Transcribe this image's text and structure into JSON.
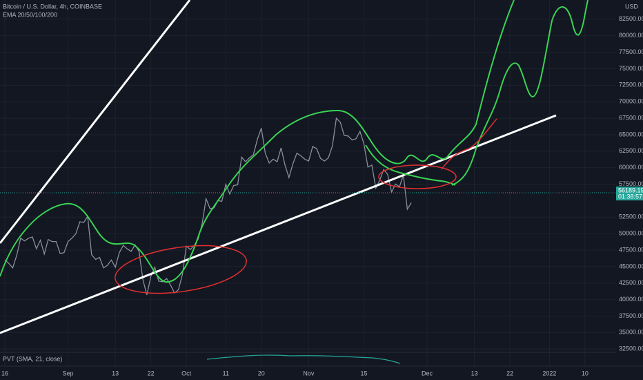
{
  "chart_data": {
    "type": "line",
    "title": "Bitcoin / U.S. Dollar, 4h, COINBASE",
    "subtitle": "EMA 20/50/100/200",
    "currency": "USD",
    "indicator": "PVT (SMA, 21, close)",
    "countdown": "01:38:57",
    "last_price": 56189.19,
    "color": "#8a8f9c",
    "price_label_color": "#26a69a",
    "grid": true,
    "categories": [
      "16",
      null,
      null,
      null,
      null,
      null,
      null,
      null,
      null,
      null,
      null,
      null,
      null,
      null,
      null,
      null,
      "Sep",
      null,
      null,
      null,
      null,
      null,
      null,
      null,
      null,
      null,
      null,
      null,
      "13",
      null,
      null,
      null,
      null,
      null,
      null,
      null,
      null,
      "22",
      null,
      null,
      null,
      null,
      null,
      null,
      null,
      null,
      "Oct",
      null,
      null,
      null,
      null,
      null,
      null,
      null,
      null,
      null,
      "11",
      null,
      null,
      null,
      null,
      null,
      null,
      null,
      null,
      "20",
      null,
      null,
      null,
      null,
      null,
      null,
      null,
      null,
      null,
      null,
      null,
      "Nov",
      null,
      null,
      null,
      null,
      null,
      null,
      null,
      null,
      null,
      null,
      null,
      null,
      null,
      "15",
      null,
      null,
      null,
      null,
      null,
      null,
      null,
      null,
      null,
      null,
      null,
      null,
      null,
      null,
      null,
      "Dec",
      null,
      null,
      null,
      null,
      null,
      null,
      null,
      null,
      null,
      null,
      null,
      "13",
      null,
      null,
      null,
      null,
      null,
      null,
      null,
      null,
      "22",
      null,
      null,
      null,
      null,
      null,
      null,
      null,
      null,
      null,
      "2022",
      null,
      null,
      null,
      null,
      null,
      null,
      null,
      null,
      "10",
      null,
      null,
      null,
      null,
      null,
      null,
      null
    ],
    "values": [
      46000,
      45500,
      44800,
      46700,
      49300,
      48900,
      49300,
      49500,
      47700,
      49000,
      46900,
      49100,
      48800,
      48800,
      47000,
      47100,
      48800,
      49300,
      50000,
      51800,
      51700,
      52600,
      46800,
      46100,
      46400,
      44800,
      45200,
      46000,
      44900,
      47100,
      48200,
      47700,
      47300,
      48300,
      47300,
      43000,
      40700,
      43500,
      44900,
      42800,
      42700,
      43200,
      42200,
      41000,
      41500,
      43800,
      48100,
      47600,
      48200,
      49200,
      51500,
      55300,
      53800,
      53900,
      55000,
      54900,
      57500,
      56000,
      57300,
      57400,
      61600,
      60900,
      61500,
      62000,
      64300,
      66000,
      62200,
      60700,
      61300,
      60900,
      63000,
      60400,
      58500,
      60600,
      62200,
      61800,
      61300,
      61000,
      63200,
      62900,
      61400,
      61000,
      61500,
      63300,
      67500,
      66900,
      64900,
      64800,
      64200,
      64400,
      65500,
      63600,
      60100,
      60400,
      56900,
      58100,
      59700,
      59000,
      56300,
      57500,
      57100,
      58900,
      53700,
      54700,
      null,
      null,
      null,
      null,
      null,
      null,
      null,
      null,
      null,
      null,
      null,
      null,
      null,
      null,
      null,
      null,
      null,
      null,
      null,
      null,
      null,
      null,
      null,
      null,
      null,
      null,
      null,
      null,
      null,
      null,
      null,
      null,
      null,
      null,
      null,
      null,
      null,
      null,
      null,
      null,
      null,
      null,
      null,
      null,
      null,
      null,
      null,
      null,
      null,
      null,
      null
    ],
    "ylim": [
      32000,
      85000
    ],
    "yticks": [
      {
        "value": 32500,
        "label": "32500.00"
      },
      {
        "value": 35000,
        "label": "35000.00"
      },
      {
        "value": 37500,
        "label": "37500.00"
      },
      {
        "value": 40000,
        "label": "40000.00"
      },
      {
        "value": 42500,
        "label": "42500.00"
      },
      {
        "value": 45000,
        "label": "45000.00"
      },
      {
        "value": 47500,
        "label": "47500.00"
      },
      {
        "value": 50000,
        "label": "50000.00"
      },
      {
        "value": 52500,
        "label": "52500.00"
      },
      {
        "value": 57500,
        "label": "57500.00"
      },
      {
        "value": 60000,
        "label": "60000.00"
      },
      {
        "value": 62500,
        "label": "62500.00"
      },
      {
        "value": 65000,
        "label": "65000.00"
      },
      {
        "value": 67500,
        "label": "67500.00"
      },
      {
        "value": 70000,
        "label": "70000.00"
      },
      {
        "value": 72500,
        "label": "72500.00"
      },
      {
        "value": 75000,
        "label": "75000.00"
      },
      {
        "value": 77500,
        "label": "77500.00"
      },
      {
        "value": 80000,
        "label": "80000.00"
      },
      {
        "value": 82500,
        "label": "82500.00"
      }
    ]
  }
}
